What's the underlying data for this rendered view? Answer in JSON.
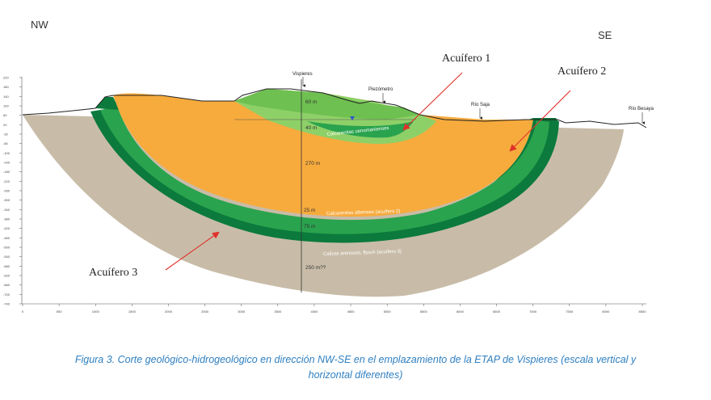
{
  "orientation": {
    "left": "NW",
    "right": "SE"
  },
  "callouts": {
    "aquifer1": "Acuífero 1",
    "aquifer2": "Acuífero 2",
    "aquifer3": "Acuífero 3"
  },
  "places": {
    "village": "Vispieres",
    "piezometer": "Piezómetro",
    "river_saja": "Río Saja",
    "river_besaya": "Río Besaya"
  },
  "layers": {
    "cenomanian": "Calcarenitas cenomanienses",
    "albian": "Calcarenitas albenses (acuífero 2)",
    "limestone": "Calizas arenosas, flysch (acuífero 3)"
  },
  "thickness": {
    "t60": "60 m",
    "t40": "40 m",
    "t270": "270 m",
    "t25": "25 m",
    "t75": "75 m",
    "t250": "250 m??"
  },
  "y_ticks": [
    "220",
    "180",
    "140",
    "100",
    "60",
    "20",
    "-20",
    "-60",
    "-100",
    "-140",
    "-180",
    "-220",
    "-260",
    "-300",
    "-340",
    "-380",
    "-420",
    "-460",
    "-500",
    "-540",
    "-580",
    "-620",
    "-660",
    "-700",
    "-740"
  ],
  "x_ticks": [
    "0",
    "500",
    "1000",
    "1500",
    "2000",
    "2500",
    "3000",
    "3500",
    "4000",
    "4500",
    "5000",
    "5500",
    "6000",
    "6500",
    "7000",
    "7500",
    "8000",
    "8500"
  ],
  "colors": {
    "orange": "#f7ab3d",
    "tan": "#c8bca8",
    "green_dark": "#0b7a3c",
    "green_mid": "#2aa34e",
    "green_light": "#8ed068",
    "green_top": "#6ec050",
    "arrow": "#e0302a"
  },
  "caption": {
    "line1": "Figura 3. Corte geológico-hidrogeológico en dirección NW-SE en el emplazamiento de la ETAP de Vispieres (escala vertical y",
    "line2": "horizontal diferentes)"
  }
}
